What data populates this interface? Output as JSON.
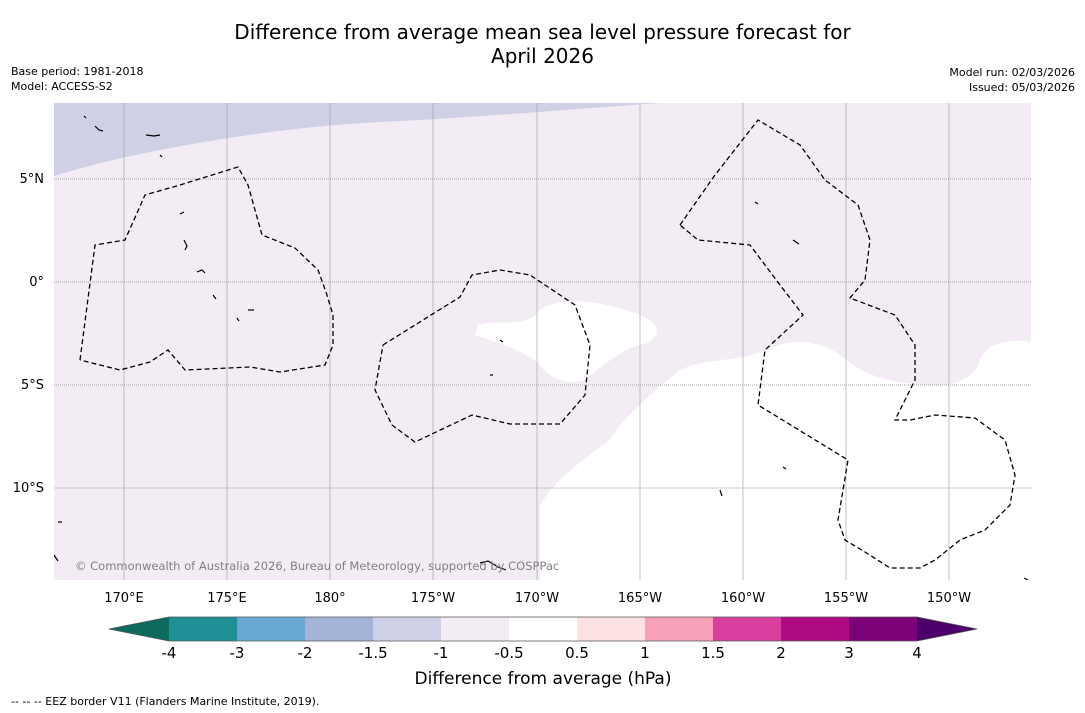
{
  "title": {
    "line1": "Difference from average mean sea level pressure forecast for",
    "line2": "April 2026"
  },
  "info_left": {
    "base_period": "Base period: 1981-2018",
    "model": "Model: ACCESS-S2"
  },
  "info_right": {
    "model_run": "Model run: 02/03/2026",
    "issued": "Issued: 05/03/2026"
  },
  "map": {
    "lat_labels": [
      "5°N",
      "0°",
      "5°S",
      "10°S"
    ],
    "lon_labels": [
      "170°E",
      "175°E",
      "180°",
      "175°W",
      "170°W",
      "165°W",
      "160°W",
      "155°W",
      "150°W"
    ],
    "copyright": "© Commonwealth of Australia 2026, Bureau of Meteorology, supported by COSPPac"
  },
  "colorbar": {
    "ticks": [
      "-4",
      "-3",
      "-2",
      "-1.5",
      "-1",
      "-0.5",
      "0.5",
      "1",
      "1.5",
      "2",
      "3",
      "4"
    ],
    "colors": [
      "#1e8f95",
      "#69a8d2",
      "#a3b4d8",
      "#cdd0e6",
      "#f3ecf5",
      "#ffffff",
      "#fde2e2",
      "#f7a1b8",
      "#d83f9e",
      "#ae0a82",
      "#7a0177"
    ],
    "under_color": "#0d6b5e",
    "over_color": "#4a0068",
    "label": "Difference from average (hPa)"
  },
  "footnote": "--  --  -- EEZ border V11 (Flanders Marine Institute, 2019)."
}
